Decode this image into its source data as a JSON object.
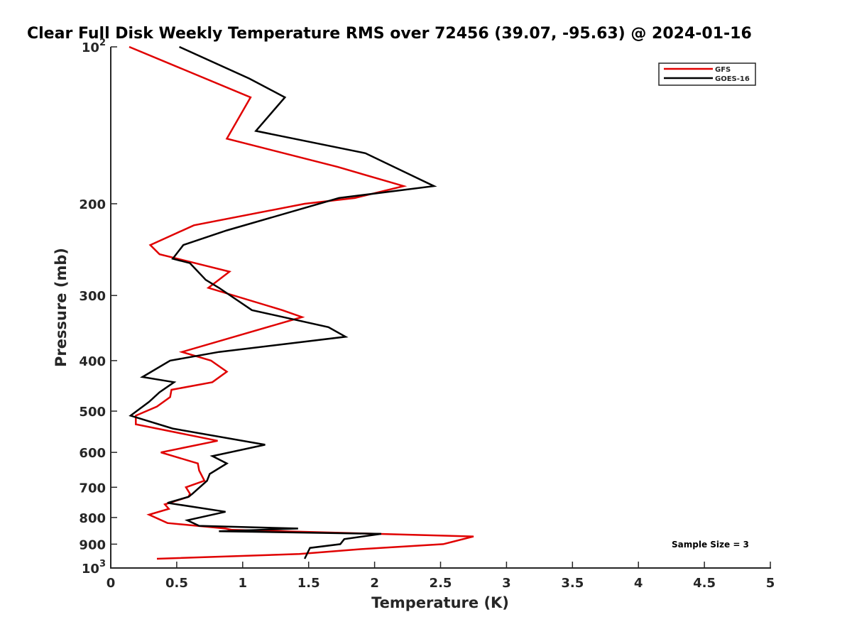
{
  "chart_data": {
    "type": "line",
    "title": "Clear Full Disk Weekly Temperature RMS over 72456 (39.07, -95.63) @ 2024-01-16",
    "xlabel": "Temperature (K)",
    "ylabel": "Pressure (mb)",
    "xlim": [
      0,
      5
    ],
    "ylim": [
      100,
      1000
    ],
    "yscale": "log",
    "y_reversed": true,
    "grid": false,
    "legend_position": "top-right",
    "x_ticks": [
      {
        "value": 0,
        "label": "0"
      },
      {
        "value": 0.5,
        "label": "0.5"
      },
      {
        "value": 1,
        "label": "1"
      },
      {
        "value": 1.5,
        "label": "1.5"
      },
      {
        "value": 2,
        "label": "2"
      },
      {
        "value": 2.5,
        "label": "2.5"
      },
      {
        "value": 3,
        "label": "3"
      },
      {
        "value": 3.5,
        "label": "3.5"
      },
      {
        "value": 4,
        "label": "4"
      },
      {
        "value": 4.5,
        "label": "4.5"
      },
      {
        "value": 5,
        "label": "5"
      }
    ],
    "y_ticks": [
      {
        "value": 100,
        "base": "10",
        "exp": "2"
      },
      {
        "value": 200,
        "label": "200"
      },
      {
        "value": 300,
        "label": "300"
      },
      {
        "value": 400,
        "label": "400"
      },
      {
        "value": 500,
        "label": "500"
      },
      {
        "value": 600,
        "label": "600"
      },
      {
        "value": 700,
        "label": "700"
      },
      {
        "value": 800,
        "label": "800"
      },
      {
        "value": 900,
        "label": "900"
      },
      {
        "value": 1000,
        "base": "10",
        "exp": "3"
      }
    ],
    "series": [
      {
        "name": "GFS",
        "color": "#e00000",
        "temperature": [
          0.14,
          1.06,
          0.88,
          1.72,
          2.22,
          1.85,
          1.47,
          0.63,
          0.3,
          0.37,
          0.9,
          0.74,
          1.3,
          1.45,
          0.54,
          0.76,
          0.88,
          0.77,
          0.46,
          0.45,
          0.35,
          0.19,
          0.19,
          0.81,
          0.38,
          0.66,
          0.67,
          0.71,
          0.57,
          0.6,
          0.59,
          0.41,
          0.44,
          0.29,
          0.43,
          0.87,
          0.92,
          2.75,
          2.52,
          1.9,
          1.43,
          0.35
        ],
        "pressure": [
          100,
          125,
          150,
          170,
          185,
          195,
          200,
          220,
          240,
          250,
          270,
          290,
          320,
          330,
          385,
          400,
          420,
          440,
          455,
          470,
          490,
          510,
          530,
          570,
          600,
          630,
          650,
          680,
          700,
          720,
          730,
          755,
          770,
          790,
          820,
          840,
          845,
          870,
          900,
          920,
          940,
          960
        ]
      },
      {
        "name": "GOES-16",
        "color": "#000000",
        "temperature": [
          0.52,
          1.05,
          1.32,
          1.1,
          1.93,
          2.45,
          1.73,
          0.88,
          0.55,
          0.47,
          0.6,
          0.72,
          0.82,
          1.07,
          1.65,
          1.78,
          0.82,
          0.45,
          0.24,
          0.48,
          0.37,
          0.29,
          0.15,
          0.47,
          1.17,
          0.77,
          0.88,
          0.75,
          0.73,
          0.62,
          0.59,
          0.43,
          0.87,
          0.58,
          0.67,
          1.42,
          0.82,
          2.05,
          1.77,
          1.74,
          1.51,
          1.47
        ],
        "pressure": [
          100,
          115,
          125,
          145,
          160,
          185,
          195,
          225,
          240,
          255,
          260,
          280,
          290,
          320,
          345,
          360,
          385,
          400,
          430,
          440,
          460,
          480,
          510,
          540,
          580,
          610,
          630,
          660,
          680,
          720,
          730,
          750,
          780,
          810,
          830,
          840,
          850,
          860,
          880,
          900,
          915,
          960
        ]
      }
    ],
    "annotation": "Sample Size = 3"
  }
}
